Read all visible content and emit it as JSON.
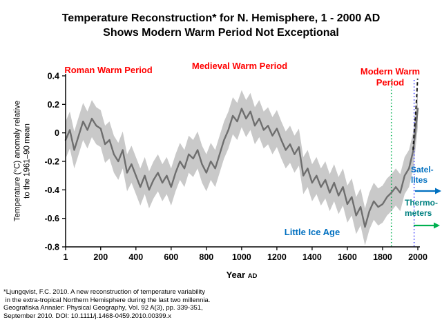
{
  "title": {
    "line1": "Temperature Reconstruction* for N. Hemisphere, 1 - 2000 AD",
    "line2": "Shows Modern Warm Period Not Exceptional"
  },
  "axes": {
    "y_label_line1": "Temperature (°C) anomaly relative",
    "y_label_line2": "to the 1961–90 mean",
    "x_label": "Year",
    "x_label_suffix": "AD"
  },
  "colors": {
    "red": "#FF0000",
    "blue": "#0070C0",
    "teal": "#008080",
    "green": "#00B050",
    "blue_vline": "#4040FF",
    "band": "#C9C9C9",
    "recon_line": "#6E6E6E",
    "instrumental": "#1A1A1A",
    "axis": "#000000"
  },
  "footnote": {
    "lines": [
      "*Ljungqvist, F.C. 2010. A new reconstruction of temperature variability",
      " in the extra-tropical Northern Hemisphere during the last two millennia.",
      "Geografiska Annaler: Physical Geography, Vol. 92 A(3), pp. 339-351,",
      "September 2010. DOI: 10.1111/j.1468-0459.2010.00399.x"
    ]
  },
  "chart_data": {
    "type": "line",
    "title": "Temperature Reconstruction* for N. Hemisphere, 1 - 2000 AD — Shows Modern Warm Period Not Exceptional",
    "xlabel": "Year AD",
    "ylabel": "Temperature (°C) anomaly relative to the 1961–90 mean",
    "xlim": [
      1,
      2000
    ],
    "ylim": [
      -0.8,
      0.4
    ],
    "x_ticks": [
      1,
      200,
      400,
      600,
      800,
      1000,
      1200,
      1400,
      1600,
      1800,
      2000
    ],
    "y_ticks": [
      "0.4",
      "0.2",
      "0",
      "-0.2",
      "-0.4",
      "-0.6",
      "-0.8"
    ],
    "grid": false,
    "legend": "none",
    "series": [
      {
        "name": "decadal temperature reconstruction",
        "color_key": "recon_line",
        "x": [
          1,
          25,
          50,
          75,
          100,
          125,
          150,
          175,
          200,
          225,
          250,
          275,
          300,
          325,
          350,
          375,
          400,
          425,
          450,
          475,
          500,
          525,
          550,
          575,
          600,
          625,
          650,
          675,
          700,
          725,
          750,
          775,
          800,
          825,
          850,
          875,
          900,
          925,
          950,
          975,
          1000,
          1025,
          1050,
          1075,
          1100,
          1125,
          1150,
          1175,
          1200,
          1225,
          1250,
          1275,
          1300,
          1325,
          1350,
          1375,
          1400,
          1425,
          1450,
          1475,
          1500,
          1525,
          1550,
          1575,
          1600,
          1625,
          1650,
          1675,
          1700,
          1725,
          1750,
          1775,
          1800,
          1825,
          1850,
          1875,
          1900,
          1925,
          1950,
          1975,
          2000
        ],
        "y": [
          -0.05,
          0.02,
          -0.12,
          -0.02,
          0.08,
          0.02,
          0.1,
          0.05,
          0.03,
          -0.08,
          -0.05,
          -0.15,
          -0.2,
          -0.12,
          -0.28,
          -0.22,
          -0.3,
          -0.38,
          -0.3,
          -0.4,
          -0.33,
          -0.28,
          -0.35,
          -0.3,
          -0.38,
          -0.28,
          -0.2,
          -0.25,
          -0.15,
          -0.18,
          -0.12,
          -0.22,
          -0.28,
          -0.2,
          -0.25,
          -0.15,
          -0.05,
          0.02,
          0.12,
          0.08,
          0.17,
          0.1,
          0.15,
          0.05,
          0.1,
          0.02,
          0.05,
          -0.02,
          0.03,
          -0.05,
          -0.12,
          -0.08,
          -0.15,
          -0.1,
          -0.3,
          -0.25,
          -0.35,
          -0.3,
          -0.38,
          -0.33,
          -0.42,
          -0.35,
          -0.44,
          -0.38,
          -0.5,
          -0.45,
          -0.58,
          -0.52,
          -0.66,
          -0.55,
          -0.48,
          -0.52,
          -0.5,
          -0.45,
          -0.42,
          -0.38,
          -0.42,
          -0.3,
          -0.25,
          -0.12,
          0.17
        ]
      },
      {
        "name": "uncertainty band",
        "color_key": "band",
        "band_halfwidth": 0.13
      },
      {
        "name": "instrumental record (dashed)",
        "color_key": "instrumental",
        "style": "dashed",
        "x": [
          1973,
          1980,
          1987,
          1994,
          1999
        ],
        "y": [
          -0.12,
          0.02,
          0.12,
          0.27,
          0.38
        ]
      }
    ],
    "vlines": [
      {
        "x": 1850,
        "name": "thermometer-era",
        "color_key": "green",
        "style": "dotted"
      },
      {
        "x": 1979,
        "name": "satellite-era",
        "color_key": "blue_vline",
        "style": "dotted"
      }
    ],
    "annotations": [
      {
        "id": "roman",
        "text": "Roman Warm Period",
        "color_key": "red"
      },
      {
        "id": "medieval",
        "text": "Medieval Warm Period",
        "color_key": "red"
      },
      {
        "id": "modern",
        "text": "Modern Warm Period",
        "color_key": "red"
      },
      {
        "id": "lia",
        "text": "Little Ice Age",
        "color_key": "blue"
      },
      {
        "id": "satellites",
        "lines": [
          "Satel-",
          "lites"
        ],
        "color_key": "blue",
        "arrow_color_key": "blue"
      },
      {
        "id": "thermometers",
        "lines": [
          "Thermo-",
          "meters"
        ],
        "color_key": "teal",
        "arrow_color_key": "green"
      }
    ]
  }
}
